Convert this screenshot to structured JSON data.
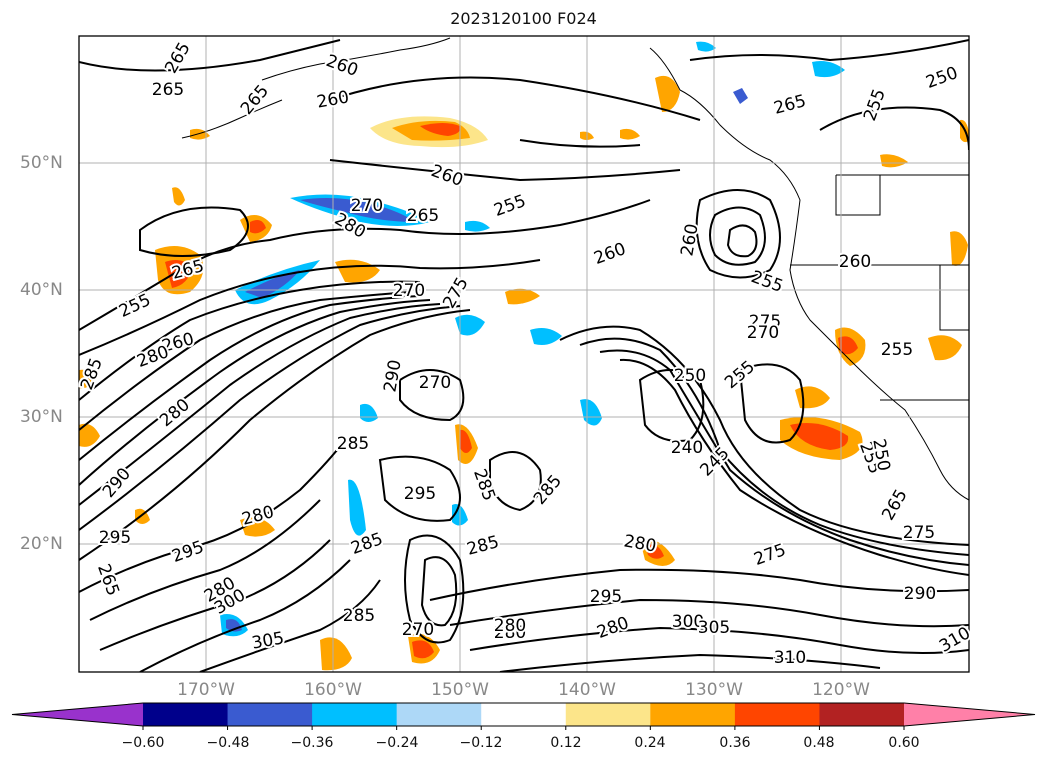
{
  "title": "2023120100 F024",
  "lat_labels": [
    "50°N",
    "40°N",
    "30°N",
    "20°N"
  ],
  "lon_labels": [
    "170°W",
    "160°W",
    "150°W",
    "140°W",
    "130°W",
    "120°W"
  ],
  "contour_labels": [
    "265",
    "260",
    "265",
    "265",
    "260",
    "250",
    "255",
    "265",
    "260",
    "270",
    "265",
    "255",
    "260",
    "260",
    "260",
    "255",
    "280",
    "265",
    "270",
    "255",
    "260",
    "275",
    "280",
    "255",
    "275",
    "270",
    "270",
    "285",
    "280",
    "290",
    "250",
    "255",
    "240",
    "245",
    "285",
    "295",
    "285",
    "285",
    "255",
    "295",
    "280",
    "290",
    "285",
    "295",
    "280",
    "285",
    "275",
    "265",
    "250",
    "275",
    "265",
    "280",
    "285",
    "295",
    "300",
    "305",
    "280",
    "280",
    "310",
    "310",
    "280",
    "270",
    "290",
    "300",
    "305"
  ],
  "colorbar": {
    "colors": [
      "#9932cc",
      "#00008b",
      "#3a5bd0",
      "#00bfff",
      "#add8f7",
      "#ffffff",
      "#fce58a",
      "#ffa500",
      "#ff4500",
      "#b22222",
      "#ff80a8"
    ],
    "ticks": [
      "−0.60",
      "−0.48",
      "−0.36",
      "−0.24",
      "−0.12",
      "0.12",
      "0.24",
      "0.36",
      "0.48",
      "0.60"
    ]
  }
}
